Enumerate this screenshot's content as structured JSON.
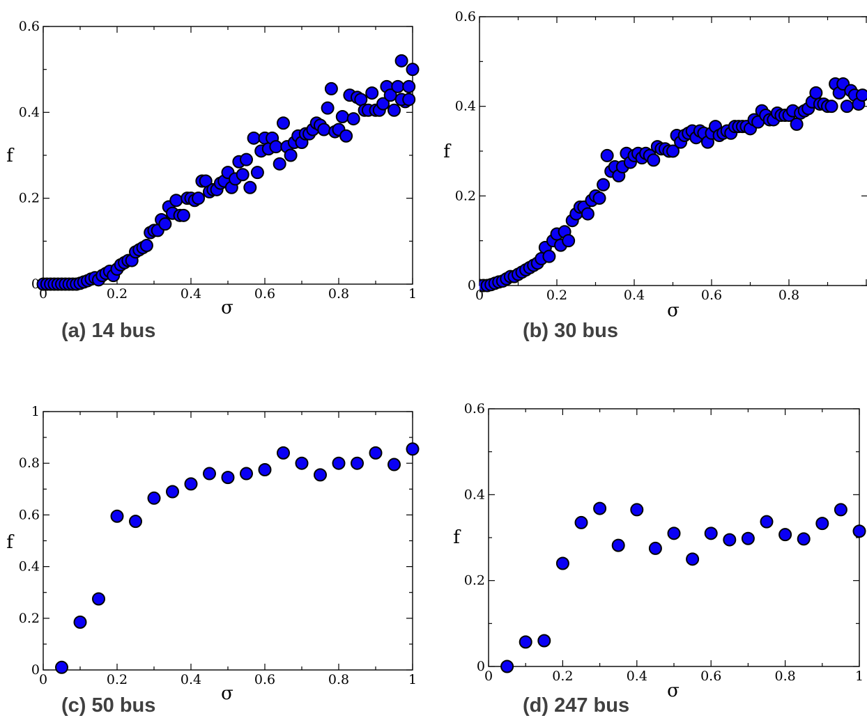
{
  "chart_data": [
    {
      "id": "a",
      "type": "scatter",
      "panel_label": "(a) 14 bus",
      "xlabel": "σ",
      "ylabel": "f",
      "xlim": [
        0,
        1
      ],
      "ylim": [
        0,
        0.6
      ],
      "xticks": [
        0,
        0.2,
        0.4,
        0.6,
        0.8,
        1
      ],
      "yticks": [
        0,
        0.2,
        0.4,
        0.6
      ],
      "xtick_labels": [
        "0",
        "0.2",
        "0.4",
        "0.6",
        "0.8",
        "1"
      ],
      "ytick_labels": [
        "0",
        "0.2",
        "0.4",
        "0.6"
      ],
      "grid": false,
      "marker_color": "#0a00f5",
      "points": [
        [
          0.0,
          0.0
        ],
        [
          0.01,
          0.0
        ],
        [
          0.02,
          0.0
        ],
        [
          0.03,
          0.0
        ],
        [
          0.04,
          0.0
        ],
        [
          0.05,
          0.0
        ],
        [
          0.06,
          0.0
        ],
        [
          0.07,
          0.0
        ],
        [
          0.08,
          0.0
        ],
        [
          0.09,
          0.0
        ],
        [
          0.1,
          0.002
        ],
        [
          0.11,
          0.005
        ],
        [
          0.12,
          0.008
        ],
        [
          0.13,
          0.012
        ],
        [
          0.14,
          0.015
        ],
        [
          0.15,
          0.01
        ],
        [
          0.16,
          0.02
        ],
        [
          0.17,
          0.025
        ],
        [
          0.18,
          0.03
        ],
        [
          0.19,
          0.02
        ],
        [
          0.2,
          0.035
        ],
        [
          0.21,
          0.045
        ],
        [
          0.22,
          0.05
        ],
        [
          0.23,
          0.055
        ],
        [
          0.24,
          0.055
        ],
        [
          0.25,
          0.075
        ],
        [
          0.26,
          0.08
        ],
        [
          0.27,
          0.085
        ],
        [
          0.28,
          0.09
        ],
        [
          0.29,
          0.12
        ],
        [
          0.3,
          0.125
        ],
        [
          0.31,
          0.125
        ],
        [
          0.32,
          0.15
        ],
        [
          0.33,
          0.14
        ],
        [
          0.34,
          0.18
        ],
        [
          0.35,
          0.165
        ],
        [
          0.36,
          0.195
        ],
        [
          0.37,
          0.16
        ],
        [
          0.38,
          0.16
        ],
        [
          0.39,
          0.2
        ],
        [
          0.4,
          0.2
        ],
        [
          0.41,
          0.195
        ],
        [
          0.42,
          0.2
        ],
        [
          0.43,
          0.24
        ],
        [
          0.44,
          0.24
        ],
        [
          0.45,
          0.215
        ],
        [
          0.46,
          0.22
        ],
        [
          0.47,
          0.22
        ],
        [
          0.48,
          0.235
        ],
        [
          0.49,
          0.24
        ],
        [
          0.5,
          0.26
        ],
        [
          0.51,
          0.225
        ],
        [
          0.52,
          0.245
        ],
        [
          0.53,
          0.285
        ],
        [
          0.54,
          0.255
        ],
        [
          0.55,
          0.29
        ],
        [
          0.56,
          0.225
        ],
        [
          0.57,
          0.34
        ],
        [
          0.58,
          0.26
        ],
        [
          0.59,
          0.31
        ],
        [
          0.6,
          0.34
        ],
        [
          0.61,
          0.315
        ],
        [
          0.62,
          0.34
        ],
        [
          0.63,
          0.32
        ],
        [
          0.64,
          0.28
        ],
        [
          0.65,
          0.375
        ],
        [
          0.66,
          0.32
        ],
        [
          0.67,
          0.3
        ],
        [
          0.68,
          0.33
        ],
        [
          0.69,
          0.345
        ],
        [
          0.7,
          0.33
        ],
        [
          0.71,
          0.35
        ],
        [
          0.72,
          0.35
        ],
        [
          0.73,
          0.36
        ],
        [
          0.74,
          0.375
        ],
        [
          0.75,
          0.37
        ],
        [
          0.76,
          0.36
        ],
        [
          0.77,
          0.41
        ],
        [
          0.78,
          0.455
        ],
        [
          0.79,
          0.355
        ],
        [
          0.8,
          0.36
        ],
        [
          0.81,
          0.39
        ],
        [
          0.82,
          0.345
        ],
        [
          0.83,
          0.44
        ],
        [
          0.84,
          0.385
        ],
        [
          0.85,
          0.435
        ],
        [
          0.86,
          0.43
        ],
        [
          0.87,
          0.405
        ],
        [
          0.88,
          0.405
        ],
        [
          0.89,
          0.445
        ],
        [
          0.9,
          0.405
        ],
        [
          0.91,
          0.405
        ],
        [
          0.92,
          0.42
        ],
        [
          0.93,
          0.46
        ],
        [
          0.94,
          0.44
        ],
        [
          0.95,
          0.405
        ],
        [
          0.96,
          0.46
        ],
        [
          0.97,
          0.52
        ],
        [
          0.98,
          0.425
        ],
        [
          0.99,
          0.46
        ],
        [
          1.0,
          0.5
        ],
        [
          0.97,
          0.43
        ],
        [
          0.99,
          0.43
        ]
      ]
    },
    {
      "id": "b",
      "type": "scatter",
      "panel_label": "(b) 30 bus",
      "xlabel": "σ",
      "ylabel": "f",
      "xlim": [
        0,
        1
      ],
      "ylim": [
        0,
        0.6
      ],
      "xticks": [
        0,
        0.2,
        0.4,
        0.6,
        0.8,
        1
      ],
      "yticks": [
        0,
        0.2,
        0.4,
        0.6
      ],
      "xtick_labels": [
        "0",
        "0.2",
        "0.4",
        "0.6",
        "0.8",
        ""
      ],
      "ytick_labels": [
        "0",
        "0.2",
        "0.4",
        "0.6"
      ],
      "grid": false,
      "marker_color": "#0a00f5",
      "points": [
        [
          0.0,
          0.0
        ],
        [
          0.01,
          0.0
        ],
        [
          0.02,
          0.0
        ],
        [
          0.03,
          0.002
        ],
        [
          0.04,
          0.005
        ],
        [
          0.05,
          0.008
        ],
        [
          0.06,
          0.01
        ],
        [
          0.07,
          0.015
        ],
        [
          0.08,
          0.02
        ],
        [
          0.09,
          0.02
        ],
        [
          0.1,
          0.025
        ],
        [
          0.11,
          0.03
        ],
        [
          0.12,
          0.035
        ],
        [
          0.13,
          0.04
        ],
        [
          0.14,
          0.045
        ],
        [
          0.15,
          0.05
        ],
        [
          0.16,
          0.06
        ],
        [
          0.17,
          0.085
        ],
        [
          0.18,
          0.065
        ],
        [
          0.19,
          0.1
        ],
        [
          0.2,
          0.115
        ],
        [
          0.21,
          0.09
        ],
        [
          0.22,
          0.12
        ],
        [
          0.23,
          0.1
        ],
        [
          0.24,
          0.145
        ],
        [
          0.25,
          0.16
        ],
        [
          0.26,
          0.175
        ],
        [
          0.27,
          0.175
        ],
        [
          0.28,
          0.16
        ],
        [
          0.29,
          0.19
        ],
        [
          0.3,
          0.2
        ],
        [
          0.31,
          0.195
        ],
        [
          0.32,
          0.225
        ],
        [
          0.33,
          0.29
        ],
        [
          0.34,
          0.255
        ],
        [
          0.35,
          0.265
        ],
        [
          0.36,
          0.245
        ],
        [
          0.37,
          0.265
        ],
        [
          0.38,
          0.295
        ],
        [
          0.39,
          0.275
        ],
        [
          0.4,
          0.29
        ],
        [
          0.41,
          0.295
        ],
        [
          0.42,
          0.285
        ],
        [
          0.43,
          0.295
        ],
        [
          0.44,
          0.29
        ],
        [
          0.45,
          0.28
        ],
        [
          0.46,
          0.31
        ],
        [
          0.47,
          0.305
        ],
        [
          0.48,
          0.305
        ],
        [
          0.49,
          0.3
        ],
        [
          0.5,
          0.3
        ],
        [
          0.51,
          0.335
        ],
        [
          0.52,
          0.32
        ],
        [
          0.53,
          0.335
        ],
        [
          0.54,
          0.34
        ],
        [
          0.55,
          0.345
        ],
        [
          0.56,
          0.33
        ],
        [
          0.57,
          0.345
        ],
        [
          0.58,
          0.34
        ],
        [
          0.59,
          0.32
        ],
        [
          0.6,
          0.34
        ],
        [
          0.61,
          0.355
        ],
        [
          0.62,
          0.335
        ],
        [
          0.63,
          0.34
        ],
        [
          0.64,
          0.345
        ],
        [
          0.65,
          0.34
        ],
        [
          0.66,
          0.355
        ],
        [
          0.67,
          0.355
        ],
        [
          0.68,
          0.355
        ],
        [
          0.69,
          0.355
        ],
        [
          0.7,
          0.35
        ],
        [
          0.71,
          0.37
        ],
        [
          0.72,
          0.365
        ],
        [
          0.73,
          0.39
        ],
        [
          0.74,
          0.38
        ],
        [
          0.75,
          0.37
        ],
        [
          0.76,
          0.37
        ],
        [
          0.77,
          0.385
        ],
        [
          0.78,
          0.38
        ],
        [
          0.79,
          0.38
        ],
        [
          0.8,
          0.38
        ],
        [
          0.81,
          0.39
        ],
        [
          0.82,
          0.36
        ],
        [
          0.83,
          0.385
        ],
        [
          0.84,
          0.39
        ],
        [
          0.85,
          0.395
        ],
        [
          0.86,
          0.41
        ],
        [
          0.87,
          0.43
        ],
        [
          0.88,
          0.405
        ],
        [
          0.89,
          0.405
        ],
        [
          0.9,
          0.4
        ],
        [
          0.91,
          0.4
        ],
        [
          0.92,
          0.45
        ],
        [
          0.93,
          0.43
        ],
        [
          0.94,
          0.45
        ],
        [
          0.95,
          0.4
        ],
        [
          0.96,
          0.435
        ],
        [
          0.97,
          0.425
        ],
        [
          0.98,
          0.405
        ],
        [
          0.99,
          0.425
        ]
      ]
    },
    {
      "id": "c",
      "type": "scatter",
      "panel_label": "(c) 50 bus",
      "xlabel": "σ",
      "ylabel": "f",
      "xlim": [
        0,
        1
      ],
      "ylim": [
        0,
        1
      ],
      "xticks": [
        0,
        0.2,
        0.4,
        0.6,
        0.8,
        1
      ],
      "yticks": [
        0,
        0.2,
        0.4,
        0.6,
        0.8,
        1
      ],
      "xtick_labels": [
        "0",
        "0.2",
        "0.4",
        "0.6",
        "0.8",
        "1"
      ],
      "ytick_labels": [
        "0",
        "0.2",
        "0.4",
        "0.6",
        "0.8",
        "1"
      ],
      "grid": false,
      "marker_color": "#0a00f5",
      "points": [
        [
          0.05,
          0.01
        ],
        [
          0.1,
          0.185
        ],
        [
          0.15,
          0.275
        ],
        [
          0.2,
          0.595
        ],
        [
          0.25,
          0.575
        ],
        [
          0.3,
          0.665
        ],
        [
          0.35,
          0.69
        ],
        [
          0.4,
          0.72
        ],
        [
          0.45,
          0.76
        ],
        [
          0.5,
          0.745
        ],
        [
          0.55,
          0.76
        ],
        [
          0.6,
          0.775
        ],
        [
          0.65,
          0.84
        ],
        [
          0.7,
          0.8
        ],
        [
          0.75,
          0.755
        ],
        [
          0.8,
          0.8
        ],
        [
          0.85,
          0.8
        ],
        [
          0.9,
          0.84
        ],
        [
          0.95,
          0.795
        ],
        [
          1.0,
          0.855
        ]
      ]
    },
    {
      "id": "d",
      "type": "scatter",
      "panel_label": "(d) 247 bus",
      "xlabel": "σ",
      "ylabel": "f",
      "xlim": [
        0,
        1
      ],
      "ylim": [
        0,
        0.6
      ],
      "xticks": [
        0,
        0.2,
        0.4,
        0.6,
        0.8,
        1
      ],
      "yticks": [
        0,
        0.2,
        0.4,
        0.6
      ],
      "xtick_labels": [
        "0",
        "0.2",
        "0.4",
        "0.6",
        "0.8",
        "1"
      ],
      "ytick_labels": [
        "0",
        "0.2",
        "0.4",
        "0.6"
      ],
      "grid": false,
      "marker_color": "#0a00f5",
      "points": [
        [
          0.05,
          0.0
        ],
        [
          0.1,
          0.057
        ],
        [
          0.15,
          0.06
        ],
        [
          0.2,
          0.24
        ],
        [
          0.25,
          0.335
        ],
        [
          0.3,
          0.368
        ],
        [
          0.35,
          0.282
        ],
        [
          0.4,
          0.365
        ],
        [
          0.45,
          0.275
        ],
        [
          0.5,
          0.31
        ],
        [
          0.55,
          0.25
        ],
        [
          0.6,
          0.31
        ],
        [
          0.65,
          0.295
        ],
        [
          0.7,
          0.298
        ],
        [
          0.75,
          0.337
        ],
        [
          0.8,
          0.307
        ],
        [
          0.85,
          0.297
        ],
        [
          0.9,
          0.333
        ],
        [
          0.95,
          0.365
        ],
        [
          1.0,
          0.315
        ]
      ]
    }
  ]
}
